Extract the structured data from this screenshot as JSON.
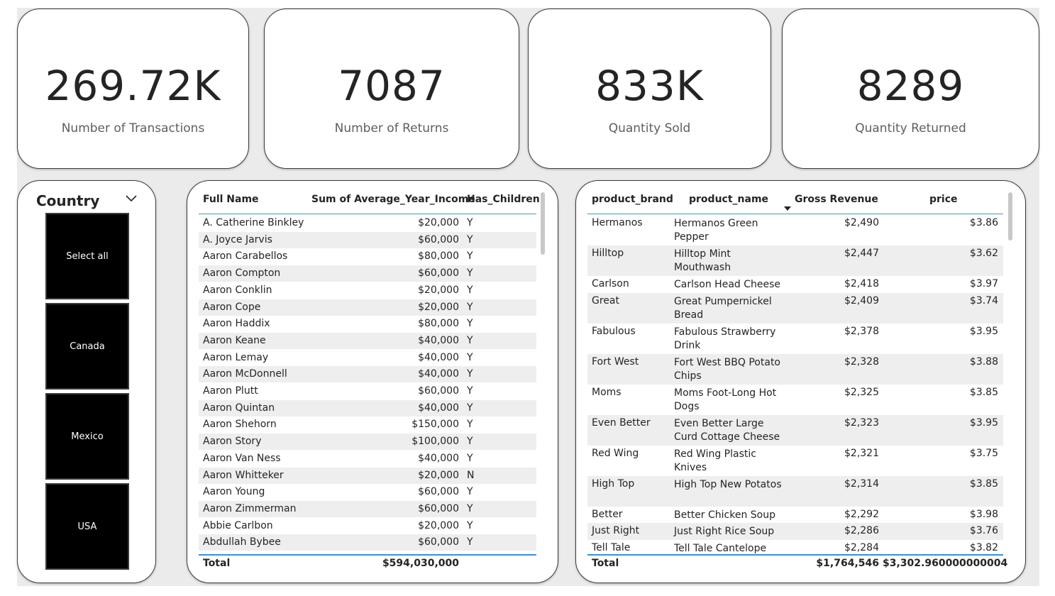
{
  "kpis": [
    {
      "value": "269.72K",
      "label": "Number of Transactions"
    },
    {
      "value": "7087",
      "label": "Number of Returns"
    },
    {
      "value": "833K",
      "label": "Quantity Sold"
    },
    {
      "value": "8289",
      "label": "Quantity Returned"
    }
  ],
  "slicer": {
    "title": "Country",
    "icon": "chevron-down-icon",
    "options": [
      "Select all",
      "Canada",
      "Mexico",
      "USA"
    ]
  },
  "customers_table": {
    "headers": [
      "Full Name",
      "Sum of Average_Year_Income",
      "Has_Children"
    ],
    "rows": [
      [
        "A. Catherine Binkley",
        "$20,000",
        "Y"
      ],
      [
        "A. Joyce Jarvis",
        "$60,000",
        "Y"
      ],
      [
        "Aaron Carabellos",
        "$80,000",
        "Y"
      ],
      [
        "Aaron Compton",
        "$60,000",
        "Y"
      ],
      [
        "Aaron Conklin",
        "$20,000",
        "Y"
      ],
      [
        "Aaron Cope",
        "$20,000",
        "Y"
      ],
      [
        "Aaron Haddix",
        "$80,000",
        "Y"
      ],
      [
        "Aaron Keane",
        "$40,000",
        "Y"
      ],
      [
        "Aaron Lemay",
        "$40,000",
        "Y"
      ],
      [
        "Aaron McDonnell",
        "$40,000",
        "Y"
      ],
      [
        "Aaron Plutt",
        "$60,000",
        "Y"
      ],
      [
        "Aaron Quintan",
        "$40,000",
        "Y"
      ],
      [
        "Aaron Shehorn",
        "$150,000",
        "Y"
      ],
      [
        "Aaron Story",
        "$100,000",
        "Y"
      ],
      [
        "Aaron Van Ness",
        "$40,000",
        "Y"
      ],
      [
        "Aaron Whitteker",
        "$20,000",
        "N"
      ],
      [
        "Aaron Young",
        "$60,000",
        "Y"
      ],
      [
        "Aaron Zimmerman",
        "$60,000",
        "Y"
      ],
      [
        "Abbie Carlbon",
        "$20,000",
        "Y"
      ],
      [
        "Abdullah Bybee",
        "$60,000",
        "Y"
      ]
    ],
    "total_label": "Total",
    "total_income": "$594,030,000"
  },
  "products_table": {
    "headers": [
      "product_brand",
      "product_name",
      "Gross Revenue",
      "price"
    ],
    "sort_icon": "sort-descending-icon",
    "rows": [
      [
        "Hermanos",
        "Hermanos Green Pepper",
        "$2,490",
        "$3.86"
      ],
      [
        "Hilltop",
        "Hilltop Mint Mouthwash",
        "$2,447",
        "$3.62"
      ],
      [
        "Carlson",
        "Carlson Head Cheese",
        "$2,418",
        "$3.97"
      ],
      [
        "Great",
        "Great Pumpernickel Bread",
        "$2,409",
        "$3.74"
      ],
      [
        "Fabulous",
        "Fabulous Strawberry Drink",
        "$2,378",
        "$3.95"
      ],
      [
        "Fort West",
        "Fort West BBQ Potato Chips",
        "$2,328",
        "$3.88"
      ],
      [
        "Moms",
        "Moms Foot-Long Hot Dogs",
        "$2,325",
        "$3.85"
      ],
      [
        "Even Better",
        "Even Better Large Curd Cottage Cheese",
        "$2,323",
        "$3.95"
      ],
      [
        "Red Wing",
        "Red Wing Plastic Knives",
        "$2,321",
        "$3.75"
      ],
      [
        "High Top",
        "High Top New Potatos",
        "$2,314",
        "$3.85"
      ],
      [
        "Better",
        "Better Chicken Soup",
        "$2,292",
        "$3.98"
      ],
      [
        "Just Right",
        "Just Right Rice Soup",
        "$2,286",
        "$3.76"
      ],
      [
        "Tell Tale",
        "Tell Tale Cantelope",
        "$2,284",
        "$3.82"
      ]
    ],
    "total_label": "Total",
    "total_revenue": "$1,764,546",
    "total_price": "$3,302.960000000004"
  },
  "colors": {
    "card_border": "#3b3b3b",
    "tile_bg": "#000000",
    "header_rule": "#3aa0a8",
    "total_rule": "#3a8fd9",
    "alt_row": "#eeeeee"
  }
}
